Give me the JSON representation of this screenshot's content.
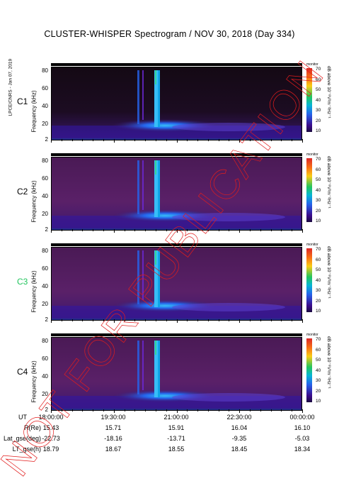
{
  "title": "CLUSTER-WHISPER Spectrogram / NOV 30, 2018 (Day 334)",
  "side_label": "LPCE/CNRS - Jan 07, 2019",
  "watermark": "NOT FOR PUBLICATION",
  "colorbar": {
    "label": "dB above 10⁻⁸V²m⁻²Hz⁻¹",
    "ticks": [
      "70",
      "60",
      "50",
      "40",
      "30",
      "20",
      "10"
    ],
    "corner_label": "monitor"
  },
  "panels": [
    {
      "sat": "C1",
      "sat_color": "#000000",
      "ylabel": "Frequency (kHz)"
    },
    {
      "sat": "C2",
      "sat_color": "#000000",
      "ylabel": "Frequency (kHz)"
    },
    {
      "sat": "C3",
      "sat_color": "#22c55e",
      "ylabel": "Frequency (kHz)"
    },
    {
      "sat": "C4",
      "sat_color": "#000000",
      "ylabel": "Frequency (kHz)"
    }
  ],
  "ephemeris": {
    "ut_label": "UT",
    "ut": [
      "18:00:00",
      "19:30:00",
      "21:00:00",
      "22:30:00",
      "00:00:00"
    ],
    "rows": [
      {
        "label": "R(Re)",
        "values": [
          "15.43",
          "15.71",
          "15.91",
          "16.04",
          "16.10"
        ]
      },
      {
        "label": "Lat_gse(deg)",
        "values": [
          "-22.73",
          "-18.16",
          "-13.71",
          "-9.35",
          "-5.03"
        ]
      },
      {
        "label": "LT_gse(h)",
        "values": [
          "18.79",
          "18.67",
          "18.55",
          "18.45",
          "18.34"
        ]
      }
    ]
  },
  "chart_data": {
    "type": "heatmap",
    "title": "CLUSTER-WHISPER Spectrogram / NOV 30, 2018 (Day 334)",
    "xlabel": "UT",
    "ylabel": "Frequency (kHz)",
    "y_ticks": [
      "2",
      "20",
      "40",
      "60",
      "80"
    ],
    "ylim": [
      2,
      82
    ],
    "x_ticks": [
      "18:00:00",
      "19:30:00",
      "21:00:00",
      "22:30:00",
      "00:00:00"
    ],
    "color_scale": {
      "min": 10,
      "max": 70,
      "unit": "dB above 10⁻⁸V²m⁻²Hz⁻¹"
    },
    "series": [
      {
        "name": "C1"
      },
      {
        "name": "C2"
      },
      {
        "name": "C3"
      },
      {
        "name": "C4"
      }
    ]
  }
}
